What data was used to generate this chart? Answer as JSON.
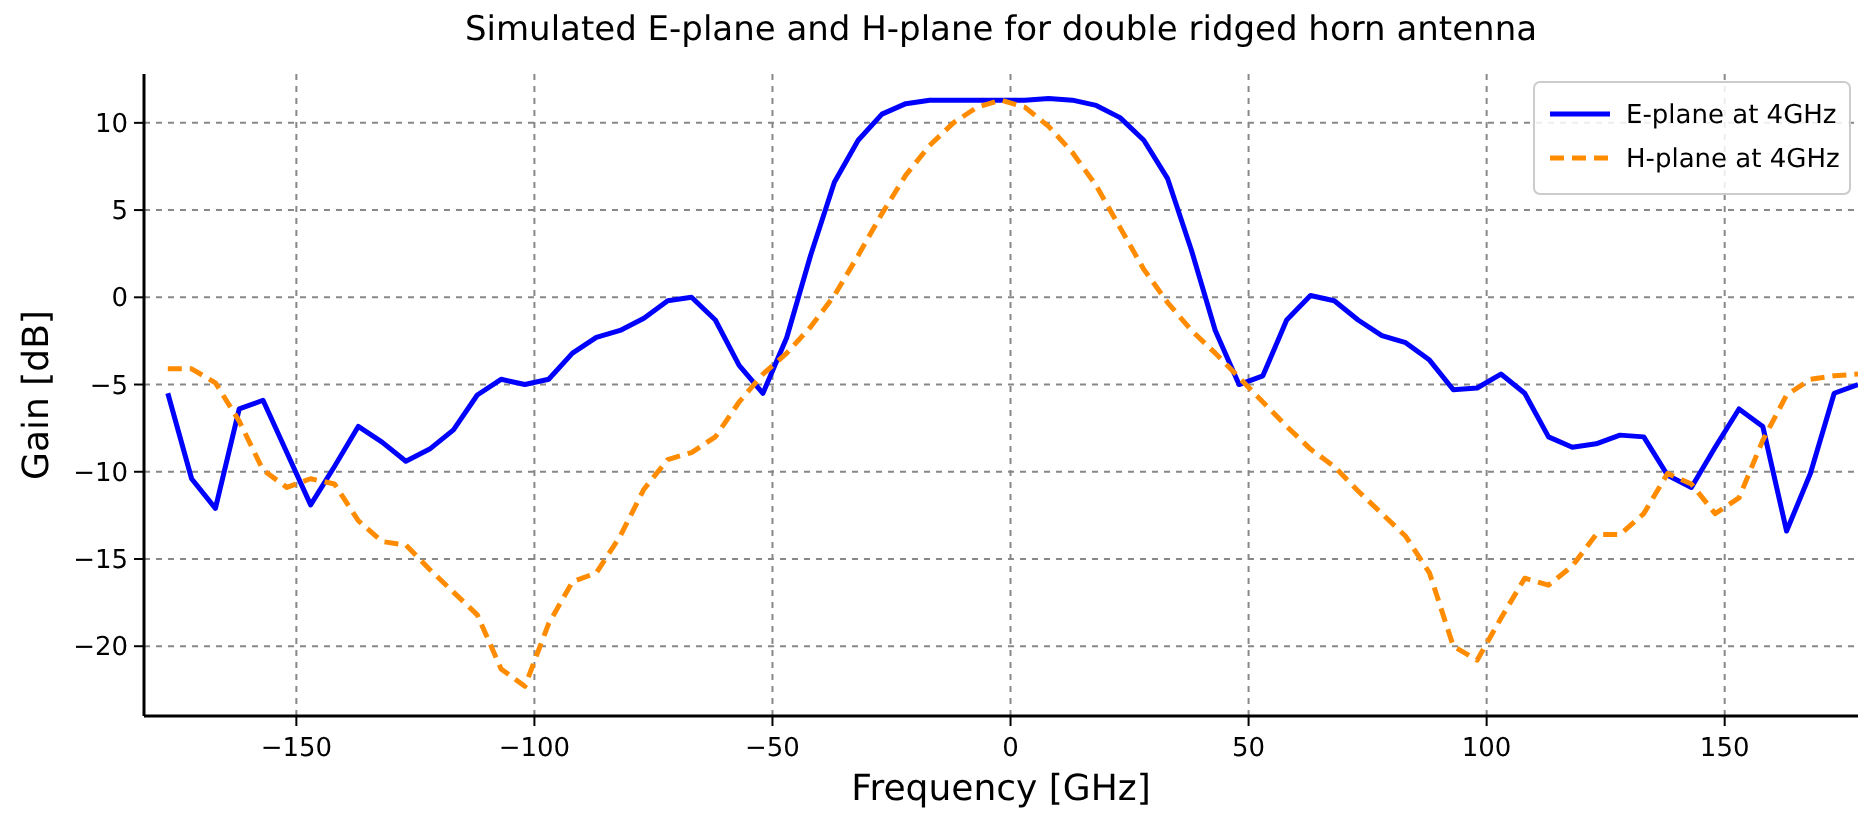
{
  "chart_data": {
    "type": "line",
    "title": "Simulated E-plane and H-plane for double ridged horn antenna",
    "xlabel": "Frequency [GHz]",
    "ylabel": "Gain [dB]",
    "x": [
      -177,
      -172,
      -167,
      -162,
      -157,
      -152,
      -147,
      -142,
      -137,
      -132,
      -127,
      -122,
      -117,
      -112,
      -107,
      -102,
      -97,
      -92,
      -87,
      -82,
      -77,
      -72,
      -67,
      -62,
      -57,
      -52,
      -47,
      -42,
      -37,
      -32,
      -27,
      -22,
      -17,
      -12,
      -7,
      -2,
      3,
      8,
      13,
      18,
      23,
      28,
      33,
      38,
      43,
      48,
      53,
      58,
      63,
      68,
      73,
      78,
      83,
      88,
      93,
      98,
      103,
      108,
      113,
      118,
      123,
      128,
      133,
      138,
      143,
      148,
      153,
      158,
      163,
      168,
      173,
      178
    ],
    "series": [
      {
        "name": "E-plane at 4GHz",
        "color": "#0000ff",
        "line_style": "solid",
        "values": [
          -5.5,
          -10.4,
          -12.1,
          -6.4,
          -5.9,
          -8.9,
          -11.9,
          -9.7,
          -7.4,
          -8.3,
          -9.4,
          -8.7,
          -7.6,
          -5.6,
          -4.7,
          -5.0,
          -4.7,
          -3.2,
          -2.3,
          -1.9,
          -1.2,
          -0.2,
          0.0,
          -1.3,
          -3.9,
          -5.5,
          -2.3,
          2.4,
          6.6,
          9.0,
          10.5,
          11.1,
          11.3,
          11.3,
          11.3,
          11.3,
          11.3,
          11.4,
          11.3,
          11.0,
          10.3,
          9.0,
          6.8,
          2.7,
          -1.9,
          -5.0,
          -4.5,
          -1.3,
          0.1,
          -0.2,
          -1.3,
          -2.2,
          -2.6,
          -3.6,
          -5.3,
          -5.2,
          -4.4,
          -5.5,
          -8.0,
          -8.6,
          -8.4,
          -7.9,
          -8.0,
          -10.2,
          -10.9,
          -8.6,
          -6.4,
          -7.4,
          -13.4,
          -10.1,
          -5.5,
          -5.0
        ]
      },
      {
        "name": "H-plane at 4GHz",
        "color": "#ff8c00",
        "line_style": "dashed",
        "values": [
          -4.1,
          -4.1,
          -4.9,
          -7.1,
          -9.9,
          -10.9,
          -10.4,
          -10.7,
          -12.8,
          -14.0,
          -14.2,
          -15.6,
          -16.9,
          -18.2,
          -21.3,
          -22.3,
          -18.7,
          -16.3,
          -15.8,
          -13.7,
          -11.0,
          -9.3,
          -8.9,
          -8.0,
          -6.0,
          -4.4,
          -3.2,
          -1.7,
          0.1,
          2.4,
          4.8,
          7.0,
          8.7,
          10.0,
          10.9,
          11.3,
          10.9,
          9.8,
          8.3,
          6.4,
          4.0,
          1.6,
          -0.3,
          -1.9,
          -3.2,
          -4.6,
          -6.0,
          -7.4,
          -8.7,
          -9.7,
          -11.1,
          -12.4,
          -13.7,
          -15.8,
          -20.0,
          -20.8,
          -18.4,
          -16.1,
          -16.5,
          -15.4,
          -13.6,
          -13.6,
          -12.4,
          -10.1,
          -10.7,
          -12.4,
          -11.5,
          -8.2,
          -5.6,
          -4.7,
          -4.5,
          -4.4
        ]
      }
    ],
    "xlim": [
      -182,
      178
    ],
    "ylim": [
      -24,
      12.8
    ],
    "xticks": [
      {
        "value": -150,
        "label": "−150"
      },
      {
        "value": -100,
        "label": "−100"
      },
      {
        "value": -50,
        "label": "−50"
      },
      0,
      50,
      100,
      150
    ],
    "yticks": [
      {
        "value": -20,
        "label": "−20"
      },
      {
        "value": -15,
        "label": "−15"
      },
      {
        "value": -10,
        "label": "−10"
      },
      {
        "value": -5,
        "label": "−5"
      },
      0,
      5,
      10
    ],
    "grid": true,
    "legend": "top right",
    "marker": "none"
  }
}
